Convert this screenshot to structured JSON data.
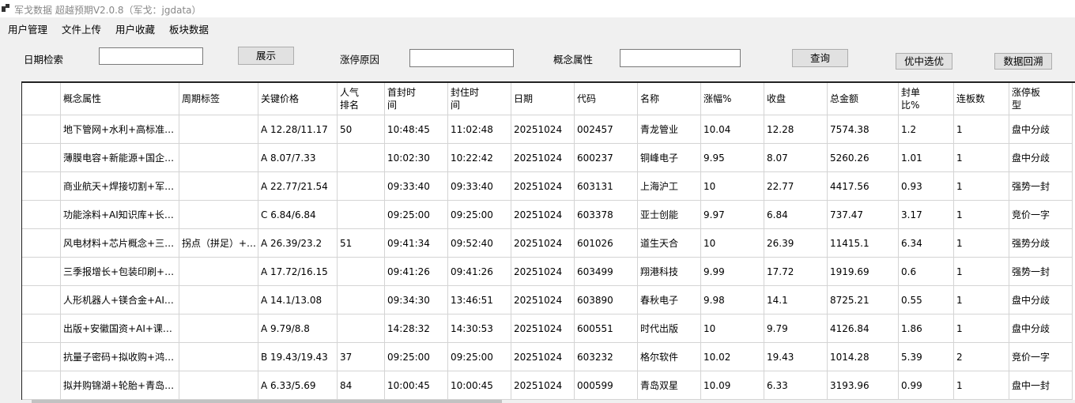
{
  "window": {
    "title": "军戈数据 超越预期V2.0.8（军戈：jgdata）"
  },
  "menu": [
    "用户管理",
    "文件上传",
    "用户收藏",
    "板块数据"
  ],
  "search": {
    "date_label": "日期检索",
    "show_button": "展示",
    "reason_label": "涨停原因",
    "concept_label": "概念属性",
    "query_button": "查询",
    "select_button": "优中选优",
    "backtrack_button": "数据回溯"
  },
  "table": {
    "columns": [
      "概念属性",
      "周期标签",
      "关键价格",
      "人气\n排名",
      "首封时\n间",
      "封住时\n间",
      "日期",
      "代码",
      "名称",
      "涨幅%",
      "收盘",
      "总金额",
      "封单\n比%",
      "连板数",
      "涨停板\n型"
    ],
    "rows": [
      [
        "地下管网+水利+高标准…",
        null,
        "A 12.28/11.17",
        "50",
        "10:48:45",
        "11:02:48",
        "20251024",
        "002457",
        "青龙管业",
        "10.04",
        "12.28",
        "7574.38",
        "1.2",
        "1",
        "盘中分歧"
      ],
      [
        "薄膜电容+新能源+国企…",
        null,
        "A 8.07/7.33",
        null,
        "10:02:30",
        "10:22:42",
        "20251024",
        "600237",
        "铜峰电子",
        "9.95",
        "8.07",
        "5260.26",
        "1.01",
        "1",
        "盘中分歧"
      ],
      [
        "商业航天+焊接切割+军…",
        null,
        "A 22.77/21.54",
        null,
        "09:33:40",
        "09:33:40",
        "20251024",
        "603131",
        "上海沪工",
        "10",
        "22.77",
        "4417.56",
        "0.93",
        "1",
        "强势一封"
      ],
      [
        "功能涂料+AI知识库+长…",
        null,
        "C 6.84/6.84",
        null,
        "09:25:00",
        "09:25:00",
        "20251024",
        "603378",
        "亚士创能",
        "9.97",
        "6.84",
        "737.47",
        "3.17",
        "1",
        "竞价一字"
      ],
      [
        "风电材料+芯片概念+三…",
        "拐点（拼足）+…",
        "A 26.39/23.2",
        "51",
        "09:41:34",
        "09:52:40",
        "20251024",
        "601026",
        "道生天合",
        "10",
        "26.39",
        "11415.1",
        "6.34",
        "1",
        "强势分歧"
      ],
      [
        "三季报增长+包装印刷+…",
        null,
        "A 17.72/16.15",
        null,
        "09:41:26",
        "09:41:26",
        "20251024",
        "603499",
        "翔港科技",
        "9.99",
        "17.72",
        "1919.69",
        "0.6",
        "1",
        "强势一封"
      ],
      [
        "人形机器人+镁合金+AI…",
        null,
        "A 14.1/13.08",
        null,
        "09:34:30",
        "13:46:51",
        "20251024",
        "603890",
        "春秋电子",
        "9.98",
        "14.1",
        "8725.21",
        "0.55",
        "1",
        "盘中分歧"
      ],
      [
        "出版+安徽国资+AI+课…",
        null,
        "A 9.79/8.8",
        null,
        "14:28:32",
        "14:30:53",
        "20251024",
        "600551",
        "时代出版",
        "10",
        "9.79",
        "4126.84",
        "1.86",
        "1",
        "盘中分歧"
      ],
      [
        "抗量子密码+拟收购+鸿…",
        null,
        "B 19.43/19.43",
        "37",
        "09:25:00",
        "09:25:00",
        "20251024",
        "603232",
        "格尔软件",
        "10.02",
        "19.43",
        "1014.28",
        "5.39",
        "2",
        "竞价一字"
      ],
      [
        "拟并购锦湖+轮胎+青岛…",
        null,
        "A 6.33/5.69",
        "84",
        "10:00:45",
        "10:00:45",
        "20251024",
        "000599",
        "青岛双星",
        "10.09",
        "6.33",
        "3193.96",
        "0.99",
        "1",
        "盘中一封"
      ]
    ]
  }
}
